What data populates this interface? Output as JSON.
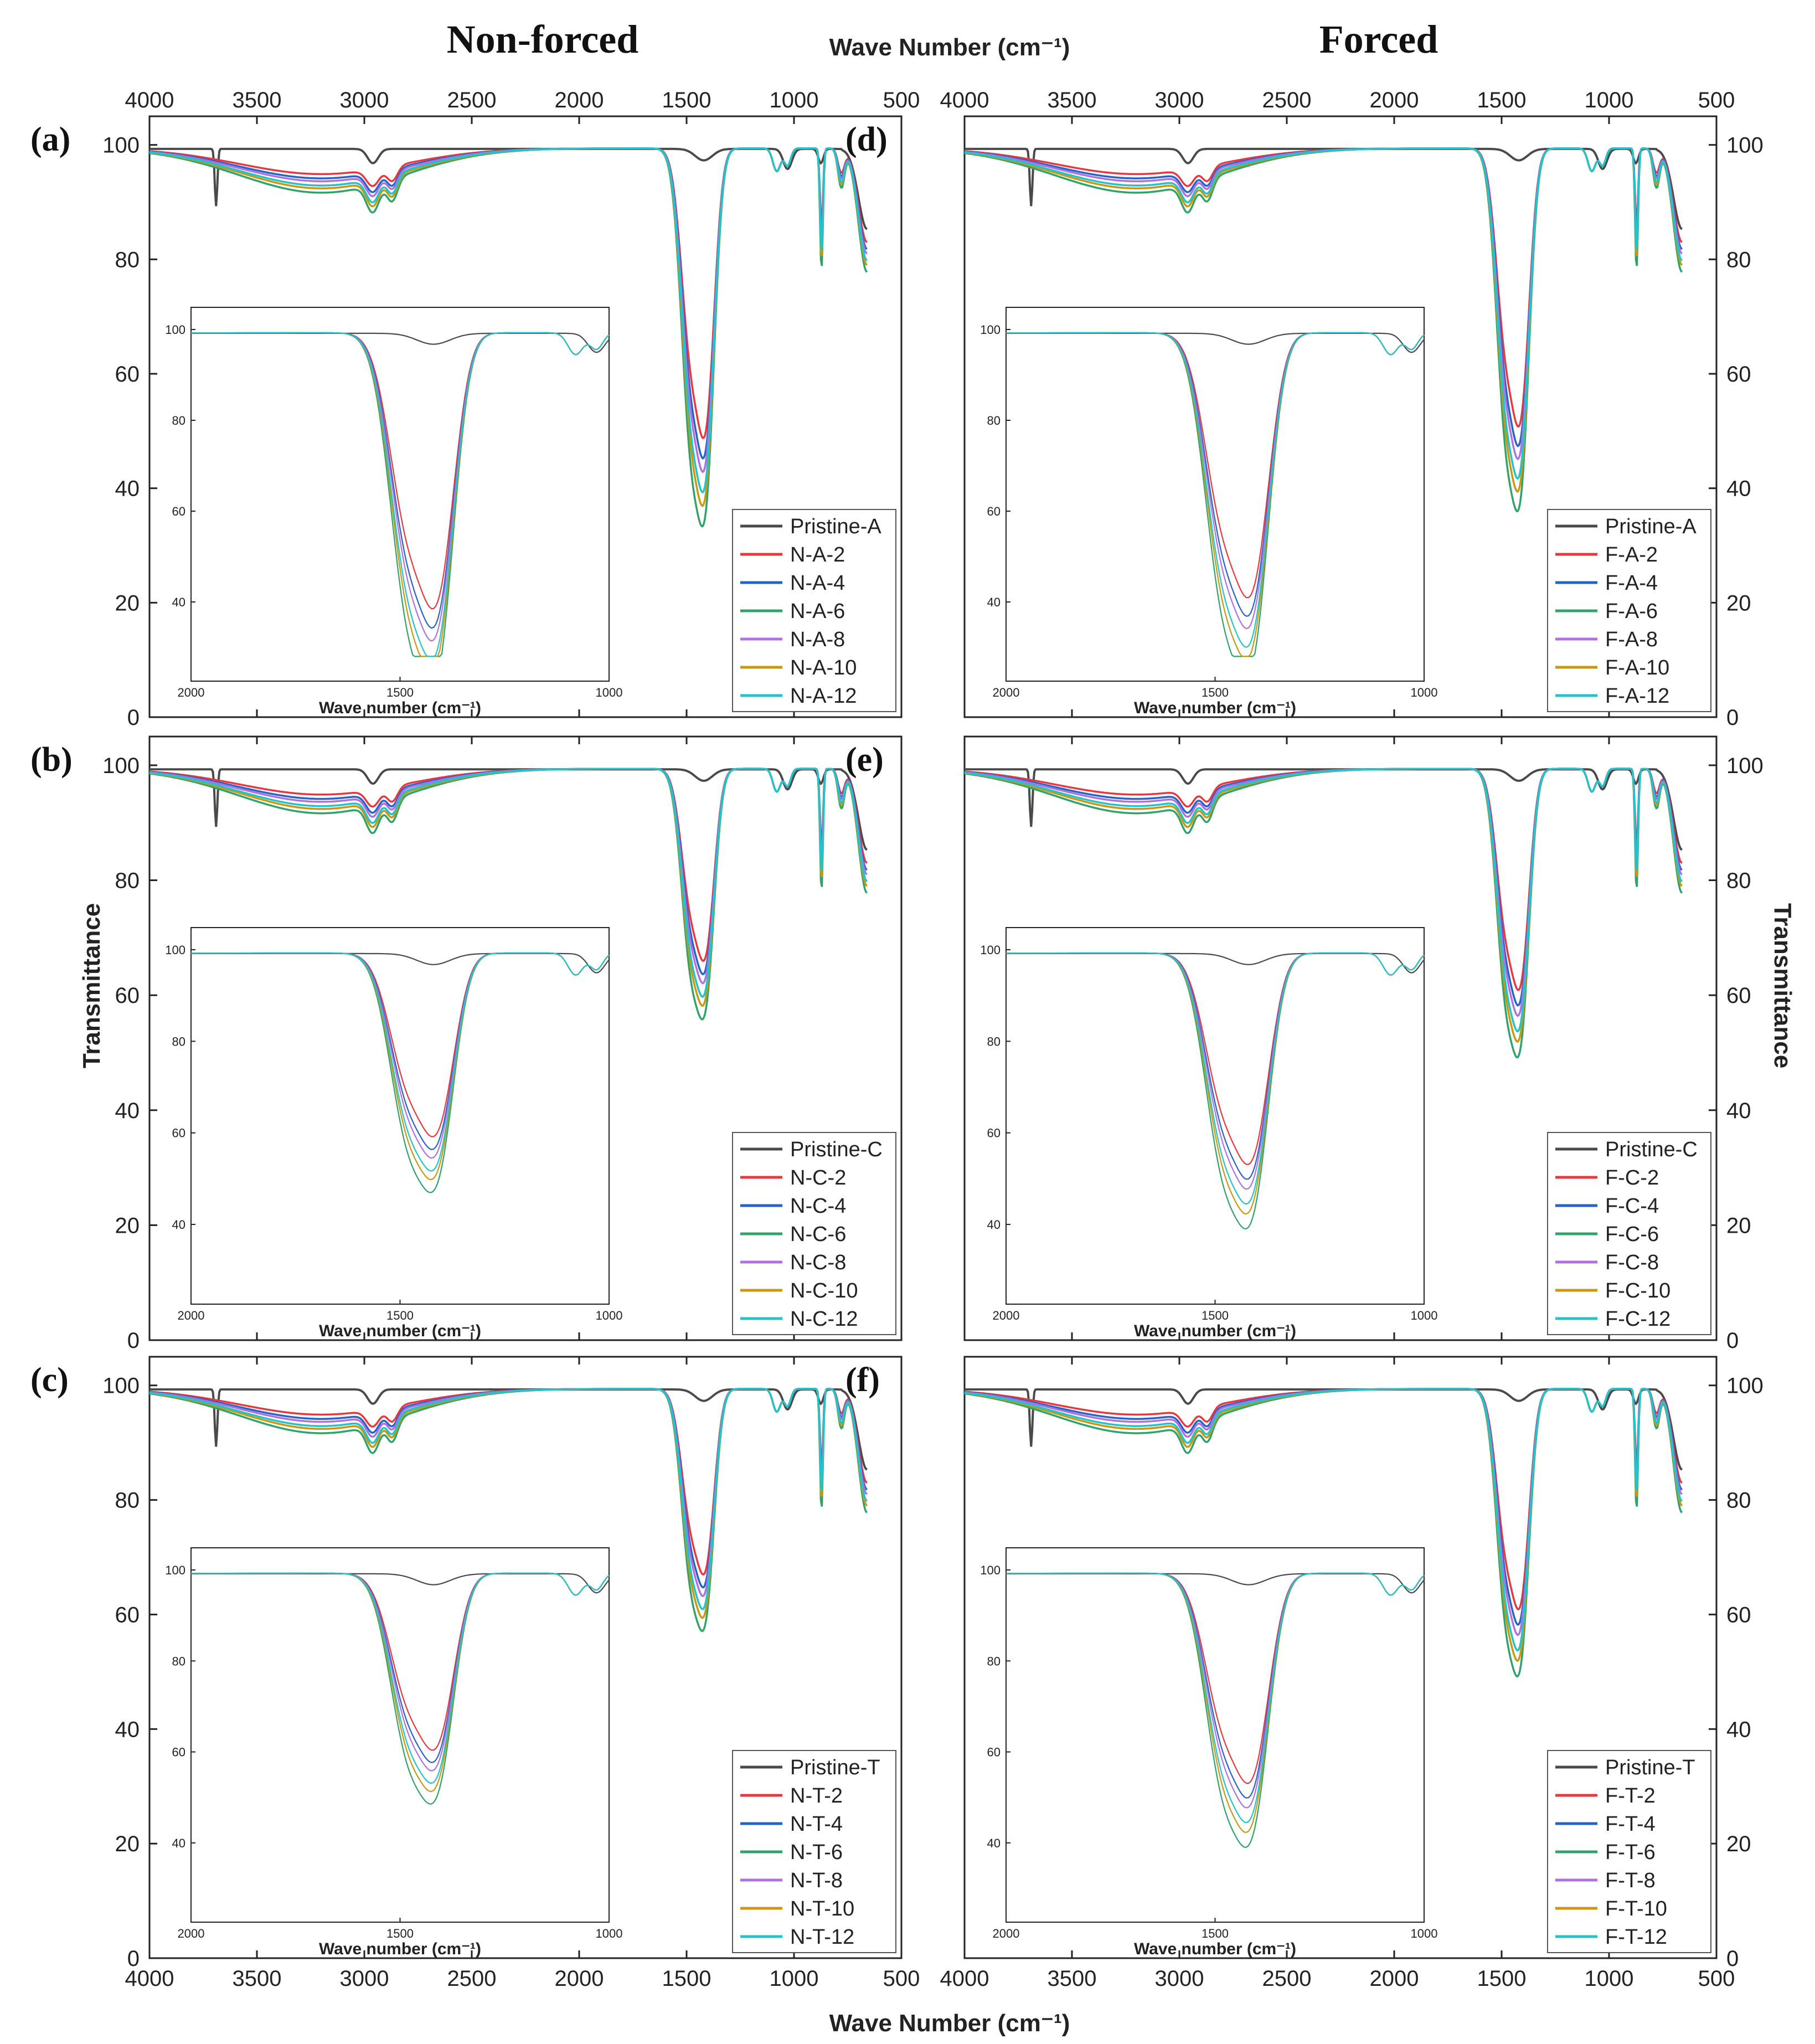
{
  "figure": {
    "title_left": "Non-forced",
    "title_right": "Forced",
    "xlabel_top": "Wave Number (cm⁻¹)",
    "xlabel_bottom": "Wave Number (cm⁻¹)",
    "ylabel_left": "Transmittance",
    "ylabel_right": "Transmittance",
    "main_x_ticks": [
      "4000",
      "3500",
      "3000",
      "2500",
      "2000",
      "1500",
      "1000",
      "500"
    ],
    "main_y_ticks": [
      "0",
      "20",
      "40",
      "60",
      "80",
      "100"
    ],
    "inset_x_ticks": [
      "2000",
      "1500",
      "1000"
    ],
    "inset_y_ticks": [
      "100",
      "80",
      "60",
      "40"
    ],
    "inset_xlabel": "Wave number (cm⁻¹)"
  },
  "colors": {
    "pristine": "#4a4a4a",
    "s2": "#e8383d",
    "s4": "#2563c9",
    "s6": "#2ea36a",
    "s8": "#b070e0",
    "s10": "#c9980d",
    "s12": "#21c4cc"
  },
  "chart_data": [
    {
      "id": "a",
      "panel_label": "(a)",
      "type": "line",
      "xlabel": "Wave Number (cm⁻¹)",
      "ylabel": "Transmittance",
      "xlim": [
        4000,
        500
      ],
      "ylim": [
        0,
        105
      ],
      "legend": [
        "Pristine-A",
        "N-A-2",
        "N-A-4",
        "N-A-6",
        "N-A-8",
        "N-A-10",
        "N-A-12"
      ],
      "inset": {
        "xlim": [
          2000,
          1000
        ],
        "xlabel": "Wave number (cm⁻¹)"
      }
    },
    {
      "id": "b",
      "panel_label": "(b)",
      "type": "line",
      "xlabel": "Wave Number (cm⁻¹)",
      "ylabel": "Transmittance",
      "xlim": [
        4000,
        500
      ],
      "ylim": [
        0,
        105
      ],
      "legend": [
        "Pristine-C",
        "N-C-2",
        "N-C-4",
        "N-C-6",
        "N-C-8",
        "N-C-10",
        "N-C-12"
      ],
      "inset": {
        "xlim": [
          2000,
          1000
        ],
        "xlabel": "Wave number (cm⁻¹)"
      }
    },
    {
      "id": "c",
      "panel_label": "(c)",
      "type": "line",
      "xlabel": "Wave Number (cm⁻¹)",
      "ylabel": "Transmittance",
      "xlim": [
        4000,
        500
      ],
      "ylim": [
        0,
        105
      ],
      "legend": [
        "Pristine-T",
        "N-T-2",
        "N-T-4",
        "N-T-6",
        "N-T-8",
        "N-T-10",
        "N-T-12"
      ],
      "inset": {
        "xlim": [
          2000,
          1000
        ],
        "xlabel": "Wave number (cm⁻¹)"
      }
    },
    {
      "id": "d",
      "panel_label": "(d)",
      "type": "line",
      "xlabel": "Wave Number (cm⁻¹)",
      "ylabel": "Transmittance",
      "xlim": [
        4000,
        500
      ],
      "ylim": [
        0,
        105
      ],
      "legend": [
        "Pristine-A",
        "F-A-2",
        "F-A-4",
        "F-A-6",
        "F-A-8",
        "F-A-10",
        "F-A-12"
      ],
      "inset": {
        "xlim": [
          2000,
          1000
        ],
        "xlabel": "Wave number (cm⁻¹)"
      }
    },
    {
      "id": "e",
      "panel_label": "(e)",
      "type": "line",
      "xlabel": "Wave Number (cm⁻¹)",
      "ylabel": "Transmittance",
      "xlim": [
        4000,
        500
      ],
      "ylim": [
        0,
        105
      ],
      "legend": [
        "Pristine-C",
        "F-C-2",
        "F-C-4",
        "F-C-6",
        "F-C-8",
        "F-C-10",
        "F-C-12"
      ],
      "inset": {
        "xlim": [
          2000,
          1000
        ],
        "xlabel": "Wave number (cm⁻¹)"
      }
    },
    {
      "id": "f",
      "panel_label": "(f)",
      "type": "line",
      "xlabel": "Wave Number (cm⁻¹)",
      "ylabel": "Transmittance",
      "xlim": [
        4000,
        500
      ],
      "ylim": [
        0,
        105
      ],
      "legend": [
        "Pristine-T",
        "F-T-2",
        "F-T-4",
        "F-T-6",
        "F-T-8",
        "F-T-10",
        "F-T-12"
      ],
      "inset": {
        "xlim": [
          2000,
          1000
        ],
        "xlabel": "Wave number (cm⁻¹)"
      }
    }
  ]
}
